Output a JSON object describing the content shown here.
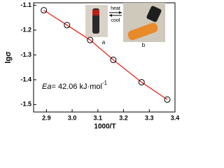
{
  "chart_data": {
    "type": "line",
    "x_label": "1000/T",
    "y_label": "lgσ",
    "annotation": {
      "italic": "Ea",
      "text": "= 42.06 kJ·mol",
      "superscript": "-1"
    },
    "inset": {
      "arrow_top": "heat",
      "arrow_bottom": "cool",
      "photo_a": "a",
      "photo_b": "b"
    },
    "series": [
      {
        "name": "lgσ",
        "color": "#e8261c",
        "marker_color": "#000000",
        "x": [
          2.89,
          2.98,
          3.07,
          3.16,
          3.27,
          3.37
        ],
        "values": [
          -1.12,
          -1.18,
          -1.24,
          -1.32,
          -1.41,
          -1.48
        ]
      }
    ],
    "xlim": [
      2.85,
      3.4
    ],
    "xticks": [
      2.9,
      {
        "value": 3,
        "label": "3.0"
      },
      3.1,
      3.2,
      3.3,
      3.4
    ],
    "ylim": [
      -1.53,
      -1.09
    ],
    "yticks": [
      -1.1,
      -1.2,
      -1.3,
      -1.4,
      -1.5
    ]
  }
}
